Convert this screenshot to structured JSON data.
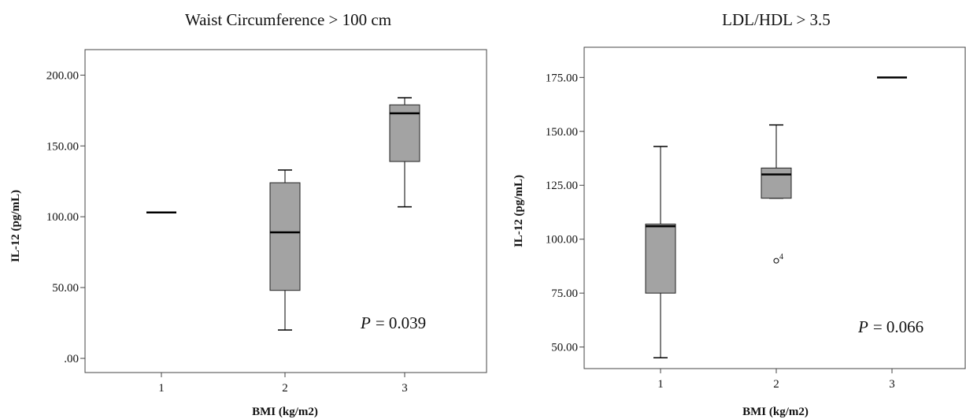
{
  "chart_data": [
    {
      "type": "box",
      "title": "Waist Circumference > 100 cm",
      "xlabel": "BMI (kg/m2)",
      "ylabel": "IL-12 (pg/mL)",
      "categories": [
        "1",
        "2",
        "3"
      ],
      "ylim": [
        -10,
        218
      ],
      "yticks": [
        0,
        50,
        100,
        150,
        200
      ],
      "ytick_labels": [
        ".00",
        "50.00",
        "100.00",
        "150.00",
        "200.00"
      ],
      "boxes": [
        {
          "category": "1",
          "min": 103,
          "q1": 103,
          "median": 103,
          "q3": 103,
          "max": 103
        },
        {
          "category": "2",
          "min": 20,
          "q1": 48,
          "median": 89,
          "q3": 124,
          "max": 133
        },
        {
          "category": "3",
          "min": 107,
          "q1": 139,
          "median": 173,
          "q3": 179,
          "max": 184
        }
      ],
      "outliers": [],
      "annotation": {
        "p_symbol": "P",
        "p_value": "= 0.039"
      }
    },
    {
      "type": "box",
      "title": "LDL/HDL > 3.5",
      "xlabel": "BMI (kg/m2)",
      "ylabel": "IL-12 (pg/mL)",
      "categories": [
        "1",
        "2",
        "3"
      ],
      "ylim": [
        40,
        189
      ],
      "yticks": [
        50,
        75,
        100,
        125,
        150,
        175
      ],
      "ytick_labels": [
        "50.00",
        "75.00",
        "100.00",
        "125.00",
        "150.00",
        "175.00"
      ],
      "boxes": [
        {
          "category": "1",
          "min": 45,
          "q1": 75,
          "median": 106,
          "q3": 107,
          "max": 143
        },
        {
          "category": "2",
          "min": 119,
          "q1": 119,
          "median": 130,
          "q3": 133,
          "max": 153
        },
        {
          "category": "3",
          "min": 175,
          "q1": 175,
          "median": 175,
          "q3": 175,
          "max": 175
        }
      ],
      "outliers": [
        {
          "category": "2",
          "value": 90,
          "label": "4"
        }
      ],
      "annotation": {
        "p_symbol": "P",
        "p_value": "= 0.066"
      }
    }
  ]
}
